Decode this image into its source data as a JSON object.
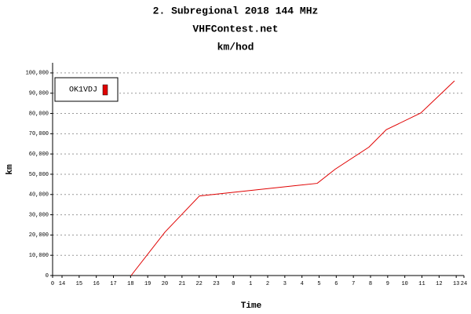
{
  "chart_data": {
    "type": "line",
    "title": "2. Subregional 2018 144 MHz",
    "subtitle": "VHFContest.net",
    "unit_title": "km/hod",
    "xlabel": "Time",
    "ylabel": "km",
    "x": [
      4.58,
      6.55,
      7.56,
      8.57,
      15.44,
      16.49,
      18.46,
      19.47,
      21.48,
      23.45
    ],
    "series": [
      {
        "name": "OK1VDJ",
        "color": "#e00000",
        "values": [
          0,
          21400,
          30350,
          39300,
          45500,
          52500,
          63400,
          72000,
          80200,
          96100
        ]
      }
    ],
    "xlim": [
      0,
      24
    ],
    "xticks": [
      0,
      {
        "value": 0.55,
        "label": "14"
      },
      {
        "value": 1.55,
        "label": "15"
      },
      {
        "value": 2.55,
        "label": "16"
      },
      {
        "value": 3.55,
        "label": "17"
      },
      {
        "value": 4.55,
        "label": "18"
      },
      {
        "value": 5.55,
        "label": "19"
      },
      {
        "value": 6.55,
        "label": "20"
      },
      {
        "value": 7.55,
        "label": "21"
      },
      {
        "value": 8.55,
        "label": "22"
      },
      {
        "value": 9.55,
        "label": "23"
      },
      {
        "value": 10.55,
        "label": "0"
      },
      {
        "value": 11.55,
        "label": "1"
      },
      {
        "value": 12.55,
        "label": "2"
      },
      {
        "value": 13.55,
        "label": "3"
      },
      {
        "value": 14.55,
        "label": "4"
      },
      {
        "value": 15.55,
        "label": "5"
      },
      {
        "value": 16.55,
        "label": "6"
      },
      {
        "value": 17.55,
        "label": "7"
      },
      {
        "value": 18.55,
        "label": "8"
      },
      {
        "value": 19.55,
        "label": "9"
      },
      {
        "value": 20.55,
        "label": "10"
      },
      {
        "value": 21.55,
        "label": "11"
      },
      {
        "value": 22.55,
        "label": "12"
      },
      {
        "value": 23.55,
        "label": "13"
      },
      24
    ],
    "ylim": [
      0,
      105000
    ],
    "yticks": [
      0,
      {
        "value": 10000,
        "label": "10,000"
      },
      {
        "value": 20000,
        "label": "20,000"
      },
      {
        "value": 30000,
        "label": "30,000"
      },
      {
        "value": 40000,
        "label": "40,000"
      },
      {
        "value": 50000,
        "label": "50,000"
      },
      {
        "value": 60000,
        "label": "60,000"
      },
      {
        "value": 70000,
        "label": "70,000"
      },
      {
        "value": 80000,
        "label": "80,000"
      },
      {
        "value": 90000,
        "label": "90,000"
      },
      {
        "value": 100000,
        "label": "100,000"
      }
    ],
    "grid": true,
    "legend": "top-left"
  }
}
